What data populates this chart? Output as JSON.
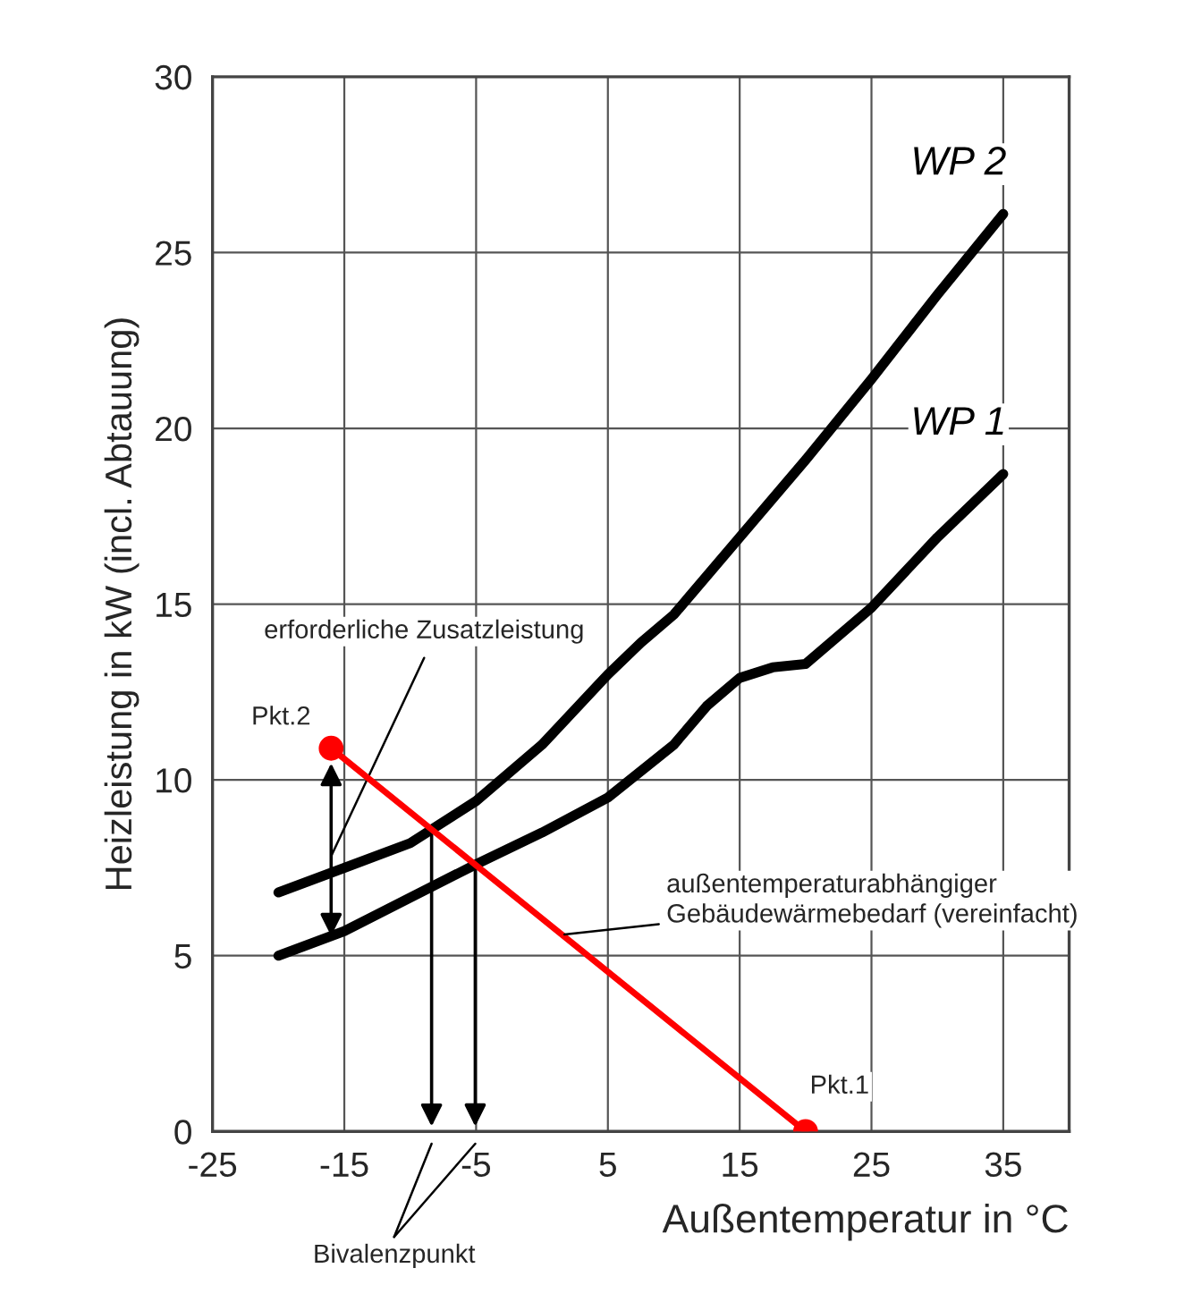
{
  "chart_data": {
    "type": "line",
    "xlabel": "Außentemperatur in °C",
    "ylabel": "Heizleistung in kW (incl. Abtauung)",
    "xlim": [
      -25,
      40
    ],
    "xticks": [
      -25,
      -15,
      -5,
      5,
      15,
      25,
      35
    ],
    "ylim": [
      0,
      30
    ],
    "yticks": [
      0,
      5,
      10,
      15,
      20,
      25,
      30
    ],
    "grid": true,
    "legend": false,
    "marker": "none",
    "line_style": "solid",
    "series": [
      {
        "name": "WP 2",
        "color": "#000000",
        "x": [
          -20,
          -15,
          -10,
          -5,
          0,
          5,
          7.5,
          10,
          15,
          20,
          25,
          30,
          35
        ],
        "values": [
          6.8,
          7.5,
          8.2,
          9.4,
          11.0,
          13.0,
          13.9,
          14.7,
          16.9,
          19.1,
          21.4,
          23.8,
          26.1
        ]
      },
      {
        "name": "WP 1",
        "color": "#000000",
        "x": [
          -20,
          -15,
          -5,
          0,
          5,
          10,
          12.5,
          15,
          17.5,
          20,
          25,
          30,
          35
        ],
        "values": [
          5.0,
          5.7,
          7.6,
          8.5,
          9.5,
          11.0,
          12.1,
          12.9,
          13.2,
          13.3,
          14.9,
          16.9,
          18.7
        ]
      },
      {
        "color": "#ff0000",
        "x": [
          -16,
          20
        ],
        "values": [
          10.9,
          0
        ],
        "marker": "circle"
      }
    ],
    "annotations": [
      {
        "text": "Pkt.2",
        "x": -16,
        "y": 10.9
      },
      {
        "text": "Pkt.1",
        "x": 20,
        "y": 0
      },
      "erforderliche Zusatzleistung",
      {
        "text": "außentemperaturabhängiger\nGebäudewärmebedarf (vereinfacht)",
        "x": 1.7,
        "y": 5.6
      },
      "Bivalenzpunkt"
    ]
  }
}
